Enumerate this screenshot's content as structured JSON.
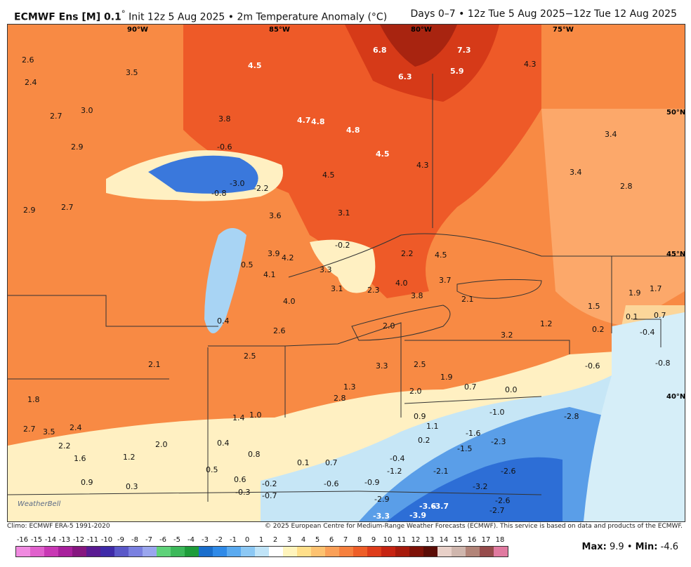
{
  "header": {
    "model": "ECMWF Ens [M] 0.1",
    "model_degree": "°",
    "init": "Init 12z 5 Aug 2025",
    "bullet": "•",
    "field": "2m Temperature Anomaly (°C)",
    "period": "Days 0–7 • 12z Tue 5 Aug 2025−12z Tue 12 Aug 2025"
  },
  "map": {
    "lon_labels": [
      "90°W",
      "85°W",
      "80°W",
      "75°W"
    ],
    "lat_labels": [
      "50°N",
      "45°N",
      "40°N"
    ],
    "watermark": "WeatherBell",
    "anomaly_labels": [
      {
        "t": "6.8",
        "w": true
      },
      {
        "t": "7.3",
        "w": true
      },
      {
        "t": "6.3",
        "w": true
      },
      {
        "t": "5.9",
        "w": true
      },
      {
        "t": "4.5",
        "w": true
      },
      {
        "t": "4.7",
        "w": true
      },
      {
        "t": "4.8",
        "w": true
      },
      {
        "t": "4.8",
        "w": true
      },
      {
        "t": "4.5",
        "w": true
      },
      {
        "t": "4.5",
        "w": false
      },
      {
        "t": "4.3",
        "w": false
      },
      {
        "t": "4.3",
        "w": false
      },
      {
        "t": "3.5",
        "w": false
      },
      {
        "t": "3.8",
        "w": false
      },
      {
        "t": "3.4",
        "w": false
      },
      {
        "t": "3.4",
        "w": false
      },
      {
        "t": "2.8",
        "w": false
      },
      {
        "t": "2.6",
        "w": false
      },
      {
        "t": "2.4",
        "w": false
      },
      {
        "t": "2.7",
        "w": false
      },
      {
        "t": "2.9",
        "w": false
      },
      {
        "t": "2.9",
        "w": false
      },
      {
        "t": "2.7",
        "w": false
      },
      {
        "t": "3.0",
        "w": false
      },
      {
        "t": "-0.6",
        "w": false
      },
      {
        "t": "-3.0",
        "w": false
      },
      {
        "t": "-2.2",
        "w": false
      },
      {
        "t": "-0.8",
        "w": false
      },
      {
        "t": "-0.2",
        "w": false
      },
      {
        "t": "0.4",
        "w": false
      },
      {
        "t": "0.5",
        "w": false
      },
      {
        "t": "4.2",
        "w": false
      },
      {
        "t": "4.1",
        "w": false
      },
      {
        "t": "4.0",
        "w": false
      },
      {
        "t": "3.9",
        "w": false
      },
      {
        "t": "3.3",
        "w": false
      },
      {
        "t": "3.1",
        "w": false
      },
      {
        "t": "2.3",
        "w": false
      },
      {
        "t": "2.0",
        "w": false
      },
      {
        "t": "2.2",
        "w": false
      },
      {
        "t": "3.8",
        "w": false
      },
      {
        "t": "3.7",
        "w": false
      },
      {
        "t": "4.0",
        "w": false
      },
      {
        "t": "4.5",
        "w": false
      },
      {
        "t": "2.1",
        "w": false
      },
      {
        "t": "3.2",
        "w": false
      },
      {
        "t": "1.2",
        "w": false
      },
      {
        "t": "1.5",
        "w": false
      },
      {
        "t": "1.9",
        "w": false
      },
      {
        "t": "1.7",
        "w": false
      },
      {
        "t": "0.1",
        "w": false
      },
      {
        "t": "0.7",
        "w": false
      },
      {
        "t": "0.2",
        "w": false
      },
      {
        "t": "-0.4",
        "w": false
      },
      {
        "t": "-0.6",
        "w": false
      },
      {
        "t": "-0.8",
        "w": false
      },
      {
        "t": "0.0",
        "w": false
      },
      {
        "t": "0.7",
        "w": false
      },
      {
        "t": "1.9",
        "w": false
      },
      {
        "t": "2.0",
        "w": false
      },
      {
        "t": "2.5",
        "w": false
      },
      {
        "t": "1.3",
        "w": false
      },
      {
        "t": "2.8",
        "w": false
      },
      {
        "t": "0.9",
        "w": false
      },
      {
        "t": "1.1",
        "w": false
      },
      {
        "t": "0.2",
        "w": false
      },
      {
        "t": "-1.0",
        "w": false
      },
      {
        "t": "-1.6",
        "w": false
      },
      {
        "t": "-1.5",
        "w": false
      },
      {
        "t": "-2.3",
        "w": false
      },
      {
        "t": "-2.8",
        "w": false
      },
      {
        "t": "-2.6",
        "w": false
      },
      {
        "t": "-3.2",
        "w": false
      },
      {
        "t": "-2.1",
        "w": false
      },
      {
        "t": "-1.2",
        "w": false
      },
      {
        "t": "-2.9",
        "w": false
      },
      {
        "t": "-3.3",
        "w": true
      },
      {
        "t": "-3.9",
        "w": true
      },
      {
        "t": "-3.6",
        "w": true
      },
      {
        "t": "-3.7",
        "w": true
      },
      {
        "t": "-2.7",
        "w": false
      },
      {
        "t": "-2.6",
        "w": false
      },
      {
        "t": "-0.9",
        "w": false
      },
      {
        "t": "-0.6",
        "w": false
      },
      {
        "t": "-0.2",
        "w": false
      },
      {
        "t": "0.1",
        "w": false
      },
      {
        "t": "0.7",
        "w": false
      },
      {
        "t": "-0.4",
        "w": false
      },
      {
        "t": "1.0",
        "w": false
      },
      {
        "t": "1.4",
        "w": false
      },
      {
        "t": "0.4",
        "w": false
      },
      {
        "t": "0.8",
        "w": false
      },
      {
        "t": "0.5",
        "w": false
      },
      {
        "t": "0.6",
        "w": false
      },
      {
        "t": "-0.3",
        "w": false
      },
      {
        "t": "-0.7",
        "w": false
      },
      {
        "t": "2.6",
        "w": false
      },
      {
        "t": "2.5",
        "w": false
      },
      {
        "t": "2.1",
        "w": false
      },
      {
        "t": "1.8",
        "w": false
      },
      {
        "t": "2.7",
        "w": false
      },
      {
        "t": "3.5",
        "w": false
      },
      {
        "t": "2.4",
        "w": false
      },
      {
        "t": "2.2",
        "w": false
      },
      {
        "t": "1.6",
        "w": false
      },
      {
        "t": "1.2",
        "w": false
      },
      {
        "t": "0.9",
        "w": false
      },
      {
        "t": "0.3",
        "w": false
      },
      {
        "t": "2.0",
        "w": false
      },
      {
        "t": "3.3",
        "w": false
      },
      {
        "t": "3.6",
        "w": false
      },
      {
        "t": "3.1",
        "w": false
      }
    ]
  },
  "footer": {
    "climo": "Climo: ECMWF ERA-5 1991-2020",
    "copyright": "© 2025 European Centre for Medium-Range Weather Forecasts (ECMWF). This service is based on data and products of the ECMWF."
  },
  "legend": {
    "ticks": [
      "-16",
      "-15",
      "-14",
      "-13",
      "-12",
      "-11",
      "-10",
      "-9",
      "-8",
      "-7",
      "-6",
      "-5",
      "-4",
      "-3",
      "-2",
      "-1",
      "0",
      "1",
      "2",
      "3",
      "4",
      "5",
      "6",
      "7",
      "8",
      "9",
      "10",
      "11",
      "12",
      "13",
      "14",
      "15",
      "16",
      "17",
      "18"
    ],
    "colors": [
      "#f08ae0",
      "#e060cc",
      "#c838b4",
      "#a8209c",
      "#861680",
      "#5a1a92",
      "#3e2aa8",
      "#5a58c8",
      "#7a80e0",
      "#9aa6ee",
      "#5fd27a",
      "#3cb85a",
      "#1e9c3a",
      "#1a6ecc",
      "#2f8ae8",
      "#5aaaf0",
      "#8cc8f4",
      "#c0e4f8",
      "#ffffff",
      "#fff4bc",
      "#ffdf8a",
      "#fdc270",
      "#faa058",
      "#f6803e",
      "#ee5e28",
      "#de3c1a",
      "#c62412",
      "#a61a0c",
      "#7e1208",
      "#5a0c06",
      "#e8d0c8",
      "#cfb6ad",
      "#b28478",
      "#964c4c",
      "#e07aa0"
    ]
  },
  "stats": {
    "max_label": "Max:",
    "max_value": "9.9",
    "sep": "•",
    "min_label": "Min:",
    "min_value": "-4.6"
  },
  "colors": {
    "hot": "#ea4a1c",
    "warm": "#f77c3c",
    "mild": "#fca86a",
    "cool_neutral": "#fff2c8",
    "cold": "#5a9ee8",
    "very_cold": "#2d6ed6",
    "lake_cold": "#3a78dc",
    "border": "#333333"
  }
}
